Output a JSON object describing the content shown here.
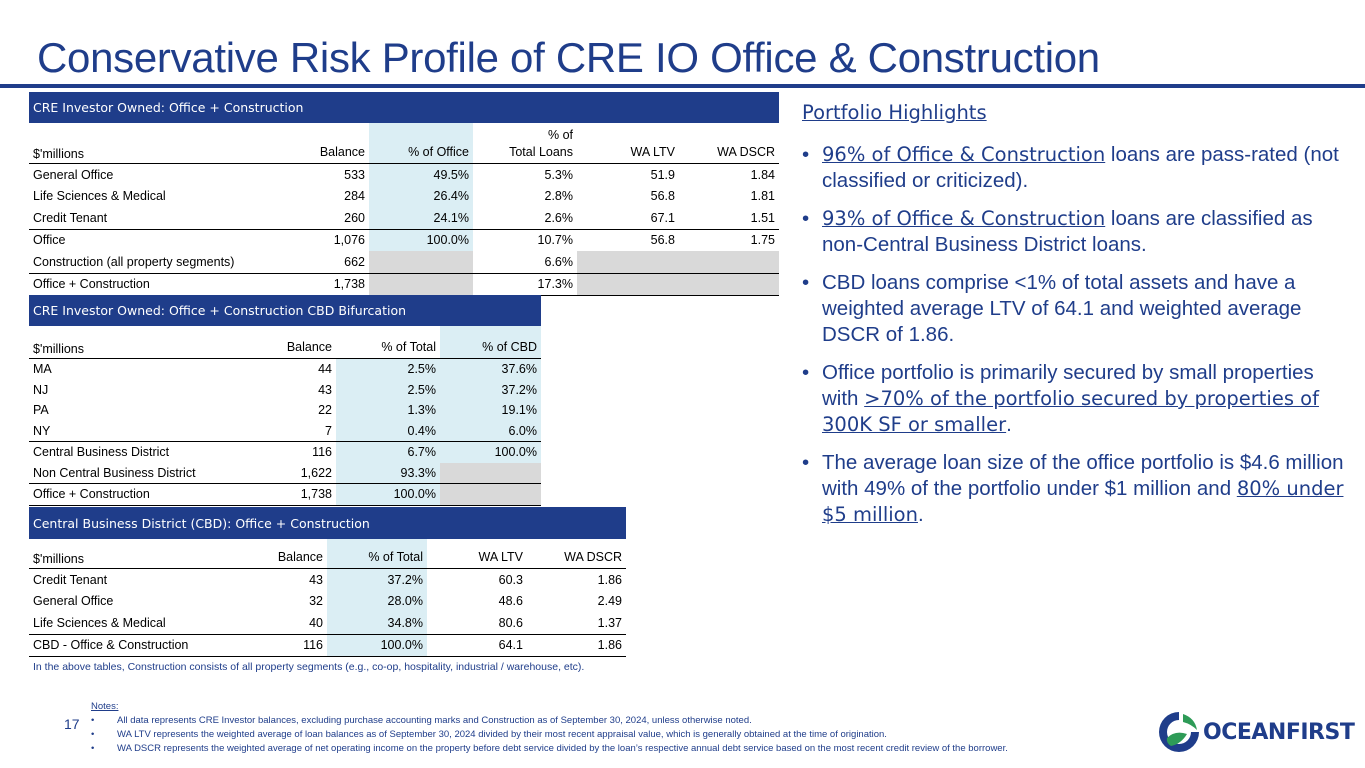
{
  "title": "Conservative Risk Profile of CRE IO Office & Construction",
  "table1": {
    "header": "CRE Investor Owned: Office + Construction",
    "col_unit": "$'millions",
    "col_balance": "Balance",
    "col_pct_office": "% of Office",
    "col_pct_total_l1": "% of",
    "col_pct_total_l2": "Total Loans",
    "col_ltv": "WA LTV",
    "col_dscr": "WA DSCR",
    "rows": [
      {
        "name": "General Office",
        "balance": "533",
        "pct_office": "49.5%",
        "pct_total": "5.3%",
        "ltv": "51.9",
        "dscr": "1.84"
      },
      {
        "name": "Life Sciences & Medical",
        "balance": "284",
        "pct_office": "26.4%",
        "pct_total": "2.8%",
        "ltv": "56.8",
        "dscr": "1.81"
      },
      {
        "name": "Credit Tenant",
        "balance": "260",
        "pct_office": "24.1%",
        "pct_total": "2.6%",
        "ltv": "67.1",
        "dscr": "1.51"
      },
      {
        "name": "Office",
        "balance": "1,076",
        "pct_office": "100.0%",
        "pct_total": "10.7%",
        "ltv": "56.8",
        "dscr": "1.75"
      },
      {
        "name": "Construction (all property segments)",
        "balance": "662",
        "pct_office": "",
        "pct_total": "6.6%",
        "ltv": "",
        "dscr": ""
      },
      {
        "name": "Office + Construction",
        "balance": "1,738",
        "pct_office": "",
        "pct_total": "17.3%",
        "ltv": "",
        "dscr": ""
      }
    ]
  },
  "table2": {
    "header": "CRE Investor Owned: Office + Construction CBD Bifurcation",
    "col_unit": "$'millions",
    "col_balance": "Balance",
    "col_pct_total": "% of Total",
    "col_pct_cbd": "% of CBD",
    "rows": [
      {
        "name": "MA",
        "balance": "44",
        "pct_total": "2.5%",
        "pct_cbd": "37.6%"
      },
      {
        "name": "NJ",
        "balance": "43",
        "pct_total": "2.5%",
        "pct_cbd": "37.2%"
      },
      {
        "name": "PA",
        "balance": "22",
        "pct_total": "1.3%",
        "pct_cbd": "19.1%"
      },
      {
        "name": "NY",
        "balance": "7",
        "pct_total": "0.4%",
        "pct_cbd": "6.0%"
      },
      {
        "name": "Central Business District",
        "balance": "116",
        "pct_total": "6.7%",
        "pct_cbd": "100.0%"
      },
      {
        "name": "Non Central Business District",
        "balance": "1,622",
        "pct_total": "93.3%",
        "pct_cbd": ""
      },
      {
        "name": "Office + Construction",
        "balance": "1,738",
        "pct_total": "100.0%",
        "pct_cbd": ""
      }
    ]
  },
  "table3": {
    "header": "Central Business District (CBD): Office + Construction",
    "col_unit": "$'millions",
    "col_balance": "Balance",
    "col_pct_total": "% of Total",
    "col_ltv": "WA LTV",
    "col_dscr": "WA DSCR",
    "rows": [
      {
        "name": "Credit Tenant",
        "balance": "43",
        "pct_total": "37.2%",
        "ltv": "60.3",
        "dscr": "1.86"
      },
      {
        "name": "General Office",
        "balance": "32",
        "pct_total": "28.0%",
        "ltv": "48.6",
        "dscr": "2.49"
      },
      {
        "name": "Life Sciences & Medical",
        "balance": "40",
        "pct_total": "34.8%",
        "ltv": "80.6",
        "dscr": "1.37"
      },
      {
        "name": "CBD - Office & Construction",
        "balance": "116",
        "pct_total": "100.0%",
        "ltv": "64.1",
        "dscr": "1.86"
      }
    ]
  },
  "footnote": "In the above tables, Construction consists of all property segments (e.g., co-op, hospitality, industrial / warehouse, etc).",
  "highlights": {
    "title": "Portfolio Highlights",
    "b1_u": "96% of Office & Construction",
    "b1_rest": " loans are pass-rated (not classified or criticized).",
    "b2_u": "93% of Office & Construction",
    "b2_rest": " loans are classified as non-Central Business District loans.",
    "b3": "CBD loans comprise <1% of total assets and have a weighted average LTV of 64.1 and weighted average DSCR of 1.86.",
    "b4_pre": "Office portfolio is primarily secured by small properties with ",
    "b4_u": ">70% of the portfolio secured by properties of 300K SF or smaller",
    "b4_post": ".",
    "b5_pre": "The average loan size of the office portfolio is $4.6 million with 49% of the portfolio under $1 million and ",
    "b5_u": "80% under $5 million",
    "b5_post": "."
  },
  "page_number": "17",
  "notes": {
    "title": "Notes:",
    "items": [
      "All data represents CRE Investor balances, excluding purchase accounting marks and Construction as of September 30, 2024, unless otherwise noted.",
      "WA LTV represents the weighted average of loan balances as of September 30, 2024 divided by their most recent appraisal value, which is generally obtained at the time of origination.",
      "WA DSCR represents the weighted average of net operating income on the property before debt service divided by the loan’s respective annual debt service based on the most recent credit review of the borrower."
    ]
  },
  "logo": {
    "text_main": "OCEAN",
    "text_bold": "FIRST"
  },
  "colors": {
    "brand": "#1f3d8a",
    "shade": "#dbeef4",
    "gray": "#d9d9d9",
    "logo_green": "#2e9b57"
  }
}
